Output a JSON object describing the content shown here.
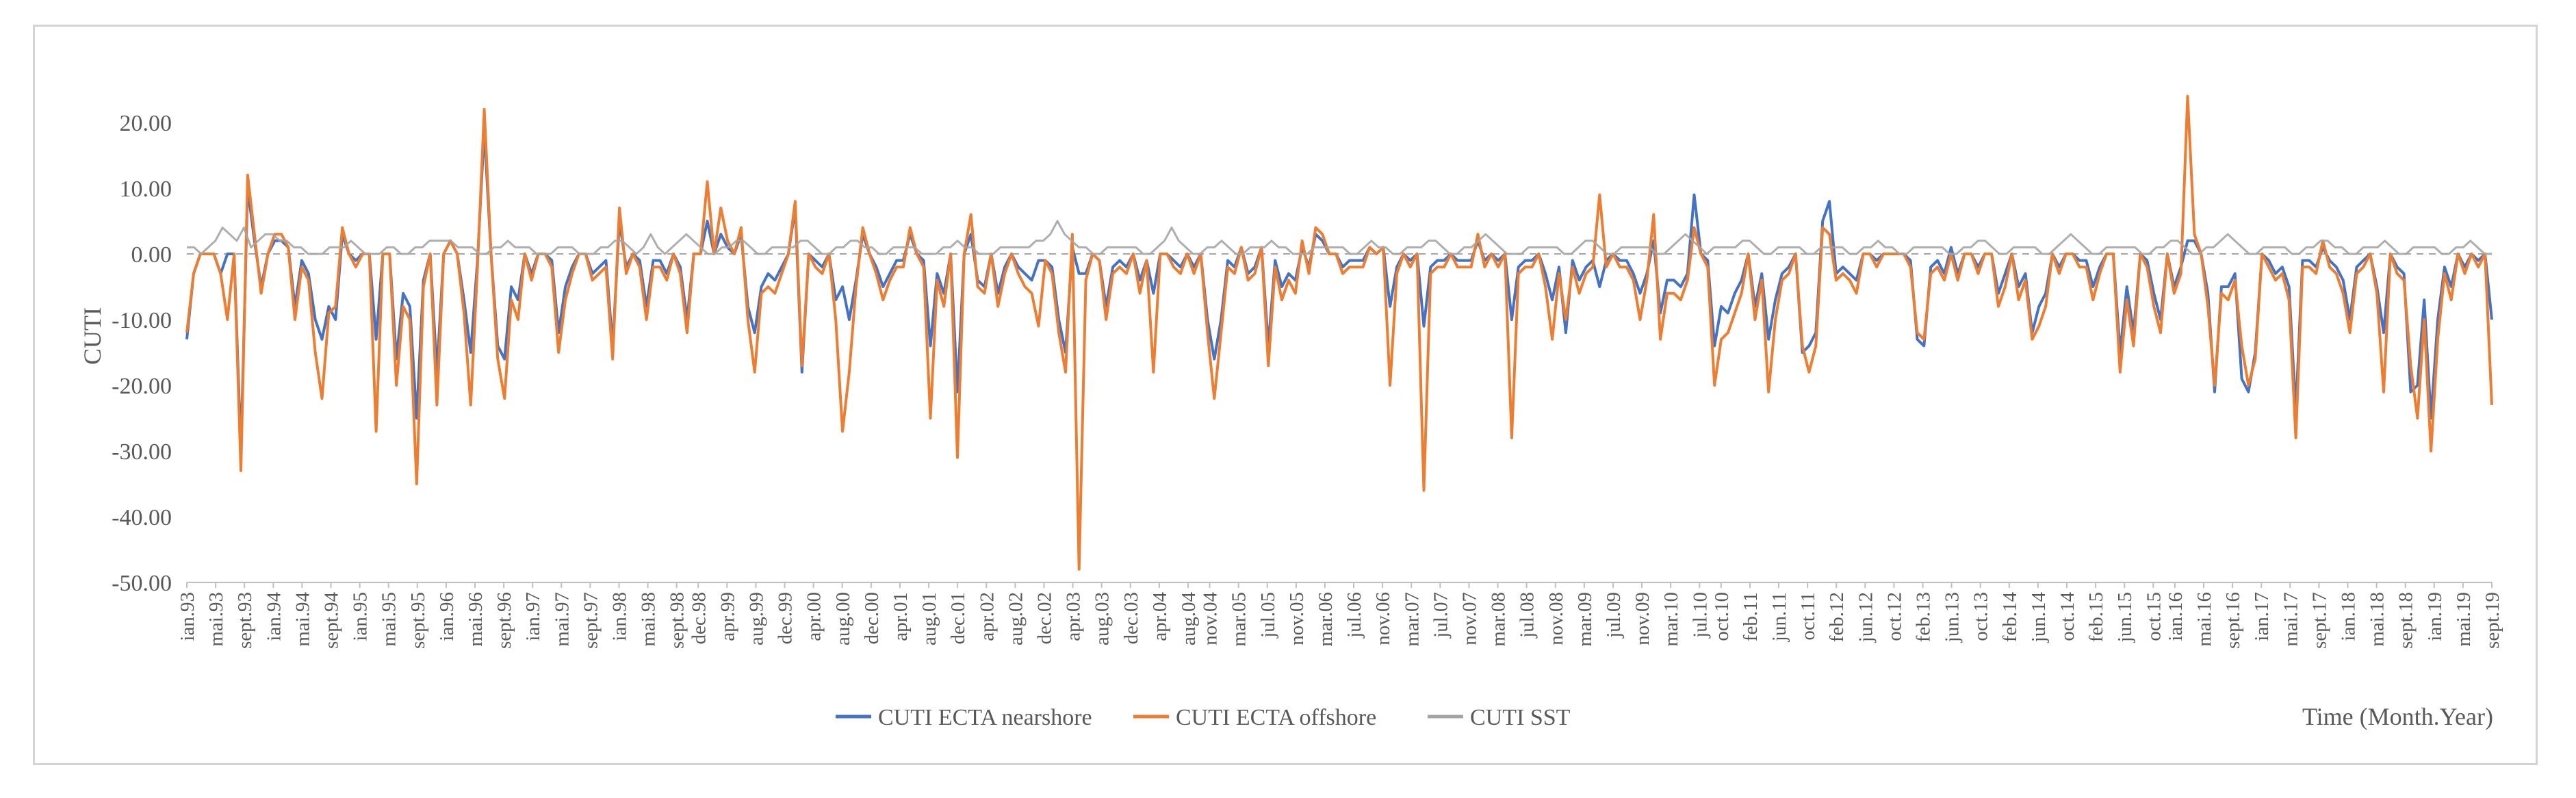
{
  "chart_data": {
    "type": "line",
    "title": "",
    "ylabel": "CUTI",
    "xlabel": "Time (Month.Year)",
    "ylim": [
      -50,
      25
    ],
    "yticks": [
      20,
      10,
      0,
      -10,
      -20,
      -30,
      -40,
      -50
    ],
    "ytick_labels": [
      "20.00",
      "10.00",
      "0.00",
      "-10.00",
      "-20.00",
      "-30.00",
      "-40.00",
      "-50.00"
    ],
    "grid": "dashed zero line only",
    "legend_position": "bottom",
    "x_start": "ian.93",
    "x_end": "sept.19",
    "x_tick_labels": [
      "ian.93",
      "mai.93",
      "sept.93",
      "ian.94",
      "mai.94",
      "sept.94",
      "ian.95",
      "mai.95",
      "sept.95",
      "ian.96",
      "mai.96",
      "sept.96",
      "ian.97",
      "mai.97",
      "sept.97",
      "ian.98",
      "mai.98",
      "sept.98",
      "dec.98",
      "apr.99",
      "aug.99",
      "dec.99",
      "apr.00",
      "aug.00",
      "dec.00",
      "apr.01",
      "aug.01",
      "dec.01",
      "apr.02",
      "aug.02",
      "dec.02",
      "apr.03",
      "aug.03",
      "dec.03",
      "apr.04",
      "aug.04",
      "nov.04",
      "mar.05",
      "jul.05",
      "nov.05",
      "mar.06",
      "jul.06",
      "nov.06",
      "mar.07",
      "jul.07",
      "nov.07",
      "mar.08",
      "jul.08",
      "nov.08",
      "mar.09",
      "jul.09",
      "nov.09",
      "mar.10",
      "jul.10",
      "oct.10",
      "feb.11",
      "jun.11",
      "oct.11",
      "feb.12",
      "jun.12",
      "oct.12",
      "feb.13",
      "jun.13",
      "oct.13",
      "feb.14",
      "jun.14",
      "oct.14",
      "feb.15",
      "jun.15",
      "oct.15",
      "ian.16",
      "mai.16",
      "sept.16",
      "ian.17",
      "mai.17",
      "sept.17",
      "ian.18",
      "mai.18",
      "sept.18",
      "ian.19",
      "mai.19",
      "sept.19"
    ],
    "x_tick_month_index": [
      0,
      4,
      8,
      12,
      16,
      20,
      24,
      28,
      32,
      36,
      40,
      44,
      48,
      52,
      56,
      60,
      64,
      68,
      71,
      75,
      79,
      83,
      87,
      91,
      95,
      99,
      103,
      107,
      111,
      115,
      119,
      123,
      127,
      131,
      135,
      139,
      142,
      146,
      150,
      154,
      158,
      162,
      166,
      170,
      174,
      178,
      182,
      186,
      190,
      194,
      198,
      202,
      206,
      210,
      213,
      217,
      221,
      225,
      229,
      233,
      237,
      241,
      245,
      249,
      253,
      257,
      261,
      265,
      269,
      273,
      276,
      280,
      284,
      288,
      292,
      296,
      300,
      304,
      308,
      312,
      316,
      320
    ],
    "series": [
      {
        "name": "CUTI ECTA nearshore",
        "color": "#4472c4",
        "values": [
          -13,
          -3,
          0,
          0,
          0,
          -3,
          0,
          0,
          -30,
          10,
          2,
          -5,
          0,
          2,
          2,
          1,
          -8,
          -1,
          -3,
          -10,
          -13,
          -8,
          -10,
          3,
          0,
          -1,
          0,
          0,
          -13,
          0,
          0,
          -16,
          -6,
          -8,
          -25,
          -4,
          0,
          -18,
          0,
          2,
          0,
          -7,
          -15,
          -1,
          19,
          0,
          -14,
          -16,
          -5,
          -7,
          0,
          -3,
          0,
          0,
          -1,
          -12,
          -5,
          -2,
          0,
          0,
          -3,
          -2,
          -1,
          -14,
          5,
          -2,
          0,
          -1,
          -8,
          -1,
          -1,
          -3,
          0,
          -2,
          -10,
          0,
          0,
          5,
          0,
          3,
          1,
          0,
          3,
          -8,
          -12,
          -5,
          -3,
          -4,
          -2,
          0,
          7,
          -18,
          0,
          -1,
          -2,
          0,
          -7,
          -5,
          -10,
          -4,
          3,
          0,
          -2,
          -5,
          -3,
          -1,
          -1,
          3,
          0,
          -1,
          -14,
          -3,
          -6,
          0,
          -21,
          0,
          3,
          -4,
          -5,
          0,
          -6,
          -2,
          0,
          -2,
          -3,
          -4,
          -1,
          -1,
          -2,
          -10,
          -15,
          1,
          -3,
          -3,
          0,
          -1,
          -8,
          -2,
          -1,
          -2,
          0,
          -4,
          -1,
          -6,
          0,
          0,
          -1,
          -2,
          0,
          -2,
          0,
          -10,
          -16,
          -10,
          -1,
          -2,
          1,
          -3,
          -2,
          1,
          -14,
          -1,
          -5,
          -3,
          -4,
          1,
          -2,
          3,
          2,
          0,
          0,
          -2,
          -1,
          -1,
          -1,
          1,
          0,
          1,
          -8,
          -2,
          0,
          -1,
          0,
          -11,
          -2,
          -1,
          -1,
          0,
          -1,
          -1,
          -1,
          2,
          -1,
          0,
          -1,
          0,
          -10,
          -2,
          -1,
          -1,
          0,
          -3,
          -7,
          -2,
          -12,
          -1,
          -4,
          -2,
          -1,
          -5,
          -1,
          0,
          -1,
          -1,
          -3,
          -6,
          -3,
          2,
          -9,
          -4,
          -4,
          -5,
          -3,
          9,
          0,
          -1,
          -14,
          -8,
          -9,
          -6,
          -4,
          0,
          -8,
          -3,
          -13,
          -7,
          -3,
          -2,
          0,
          -15,
          -14,
          -12,
          5,
          8,
          -3,
          -2,
          -3,
          -4,
          0,
          0,
          -1,
          0,
          0,
          0,
          0,
          -1,
          -13,
          -14,
          -2,
          -1,
          -3,
          1,
          -3,
          0,
          0,
          -2,
          0,
          0,
          -6,
          -3,
          0,
          -5,
          -3,
          -12,
          -8,
          -6,
          0,
          -2,
          0,
          0,
          -1,
          -1,
          -5,
          -2,
          0,
          0,
          -15,
          -5,
          -12,
          0,
          -1,
          -6,
          -10,
          0,
          -5,
          -2,
          2,
          2,
          0,
          -6,
          -21,
          -5,
          -5,
          -3,
          -19,
          -21,
          -15,
          0,
          -1,
          -3,
          -2,
          -5,
          -24,
          -1,
          -1,
          -2,
          1,
          -1,
          -2,
          -4,
          -10,
          -2,
          -1,
          0,
          -5,
          -12,
          0,
          -2,
          -3,
          -21,
          -20,
          -7,
          -25,
          -10,
          -2,
          -5,
          0,
          -2,
          0,
          -1,
          0,
          -10
        ],
        "values_note_ignore": null
      },
      {
        "name": "CUTI ECTA offshore",
        "color": "#ed7d31",
        "values": [
          -12,
          -3,
          0,
          0,
          0,
          -3,
          -10,
          0,
          -33,
          12,
          3,
          -6,
          0,
          3,
          3,
          1,
          -10,
          -2,
          -4,
          -15,
          -22,
          -9,
          -8,
          4,
          0,
          -2,
          0,
          0,
          -27,
          0,
          0,
          -20,
          -8,
          -10,
          -35,
          -5,
          0,
          -23,
          0,
          2,
          0,
          -9,
          -23,
          -2,
          22,
          0,
          -16,
          -22,
          -7,
          -10,
          0,
          -4,
          0,
          0,
          -2,
          -15,
          -7,
          -3,
          0,
          0,
          -4,
          -3,
          -2,
          -16,
          7,
          -3,
          0,
          -2,
          -10,
          -2,
          -2,
          -4,
          0,
          -3,
          -12,
          0,
          0,
          11,
          0,
          7,
          2,
          0,
          4,
          -10,
          -18,
          -6,
          -5,
          -6,
          -3,
          0,
          8,
          -17,
          0,
          -2,
          -3,
          0,
          -10,
          -27,
          -18,
          -5,
          4,
          0,
          -3,
          -7,
          -4,
          -2,
          -2,
          4,
          0,
          -2,
          -25,
          -4,
          -8,
          0,
          -31,
          0,
          6,
          -5,
          -6,
          0,
          -8,
          -3,
          0,
          -3,
          -5,
          -6,
          -11,
          -1,
          -3,
          -12,
          -18,
          3,
          -48,
          -4,
          0,
          -1,
          -10,
          -3,
          -2,
          -3,
          0,
          -6,
          -1,
          -18,
          0,
          0,
          -2,
          -3,
          0,
          -3,
          0,
          -12,
          -22,
          -12,
          -2,
          -3,
          1,
          -4,
          -3,
          1,
          -17,
          -2,
          -7,
          -4,
          -6,
          2,
          -3,
          4,
          3,
          0,
          0,
          -3,
          -2,
          -2,
          -2,
          1,
          0,
          1,
          -20,
          -3,
          0,
          -2,
          0,
          -36,
          -3,
          -2,
          -2,
          0,
          -2,
          -2,
          -2,
          3,
          -2,
          0,
          -2,
          0,
          -28,
          -3,
          -2,
          -2,
          0,
          -5,
          -13,
          -3,
          -10,
          -2,
          -6,
          -3,
          -2,
          9,
          -2,
          0,
          -2,
          -2,
          -4,
          -10,
          -4,
          6,
          -13,
          -6,
          -6,
          -7,
          -4,
          4,
          0,
          -2,
          -20,
          -13,
          -12,
          -9,
          -6,
          0,
          -10,
          -4,
          -21,
          -10,
          -4,
          -3,
          0,
          -14,
          -18,
          -14,
          4,
          3,
          -4,
          -3,
          -4,
          -6,
          0,
          0,
          -2,
          0,
          0,
          0,
          0,
          -2,
          -12,
          -13,
          -3,
          -2,
          -4,
          0,
          -4,
          0,
          0,
          -3,
          0,
          0,
          -8,
          -5,
          0,
          -7,
          -4,
          -13,
          -11,
          -8,
          0,
          -3,
          0,
          0,
          -2,
          -2,
          -7,
          -3,
          0,
          0,
          -18,
          -7,
          -14,
          0,
          -2,
          -8,
          -12,
          0,
          -6,
          -3,
          24,
          3,
          0,
          -8,
          -20,
          -6,
          -7,
          -4,
          -14,
          -20,
          -16,
          0,
          -2,
          -4,
          -3,
          -7,
          -28,
          -2,
          -2,
          -3,
          2,
          -2,
          -3,
          -6,
          -12,
          -3,
          -2,
          0,
          -6,
          -21,
          0,
          -3,
          -4,
          -17,
          -25,
          -10,
          -30,
          -13,
          -3,
          -7,
          0,
          -3,
          0,
          -2,
          0,
          -23
        ],
        "values_note_ignore": null
      },
      {
        "name": "CUTI SST",
        "color": "#a5a5a5",
        "values": [
          1,
          1,
          0,
          1,
          2,
          4,
          3,
          2,
          4,
          1,
          2,
          3,
          3,
          2,
          2,
          1,
          1,
          0,
          0,
          0,
          1,
          1,
          1,
          2,
          1,
          0,
          0,
          0,
          1,
          1,
          0,
          0,
          1,
          1,
          2,
          2,
          2,
          2,
          1,
          1,
          1,
          0,
          0,
          1,
          1,
          2,
          1,
          1,
          1,
          0,
          0,
          0,
          1,
          1,
          1,
          0,
          0,
          0,
          1,
          1,
          2,
          2,
          1,
          0,
          1,
          3,
          1,
          0,
          1,
          2,
          3,
          2,
          1,
          0,
          0,
          1,
          1,
          2,
          2,
          1,
          0,
          0,
          1,
          1,
          1,
          1,
          2,
          2,
          1,
          0,
          0,
          1,
          1,
          2,
          2,
          1,
          1,
          0,
          0,
          1,
          1,
          1,
          1,
          0,
          0,
          0,
          1,
          1,
          2,
          1,
          1,
          0,
          0,
          0,
          1,
          1,
          1,
          1,
          1,
          2,
          2,
          3,
          5,
          3,
          2,
          1,
          1,
          0,
          0,
          1,
          1,
          1,
          1,
          1,
          0,
          0,
          1,
          2,
          4,
          2,
          1,
          0,
          0,
          1,
          1,
          2,
          1,
          0,
          0,
          1,
          1,
          1,
          2,
          1,
          1,
          0,
          0,
          0,
          1,
          1,
          1,
          1,
          1,
          0,
          0,
          1,
          2,
          1,
          1,
          0,
          0,
          1,
          1,
          1,
          2,
          2,
          1,
          0,
          0,
          1,
          1,
          2,
          3,
          2,
          1,
          0,
          0,
          0,
          1,
          1,
          1,
          1,
          1,
          0,
          0,
          1,
          2,
          2,
          1,
          0,
          0,
          1,
          1,
          1,
          1,
          1,
          0,
          0,
          1,
          2,
          3,
          2,
          1,
          0,
          1,
          1,
          1,
          1,
          2,
          2,
          1,
          0,
          0,
          1,
          1,
          1,
          1,
          0,
          0,
          1,
          1,
          1,
          1,
          0,
          0,
          1,
          1,
          2,
          1,
          1,
          0,
          0,
          1,
          1,
          1,
          1,
          1,
          0,
          0,
          1,
          1,
          2,
          2,
          1,
          0,
          0,
          1,
          1,
          1,
          1,
          0,
          0,
          1,
          2,
          3,
          2,
          1,
          0,
          0,
          1,
          1,
          1,
          1,
          1,
          0,
          0,
          1,
          1,
          2,
          2,
          1,
          0,
          0,
          1,
          1,
          2,
          3,
          2,
          1,
          0,
          0,
          1,
          1,
          1,
          1,
          0,
          0,
          1,
          1,
          2,
          2,
          1,
          1,
          0,
          0,
          1,
          1,
          1,
          2,
          1,
          0,
          0,
          1,
          1,
          1,
          1,
          0,
          0,
          1,
          1,
          2,
          1,
          0,
          0
        ],
        "values_note_ignore": null
      }
    ]
  }
}
